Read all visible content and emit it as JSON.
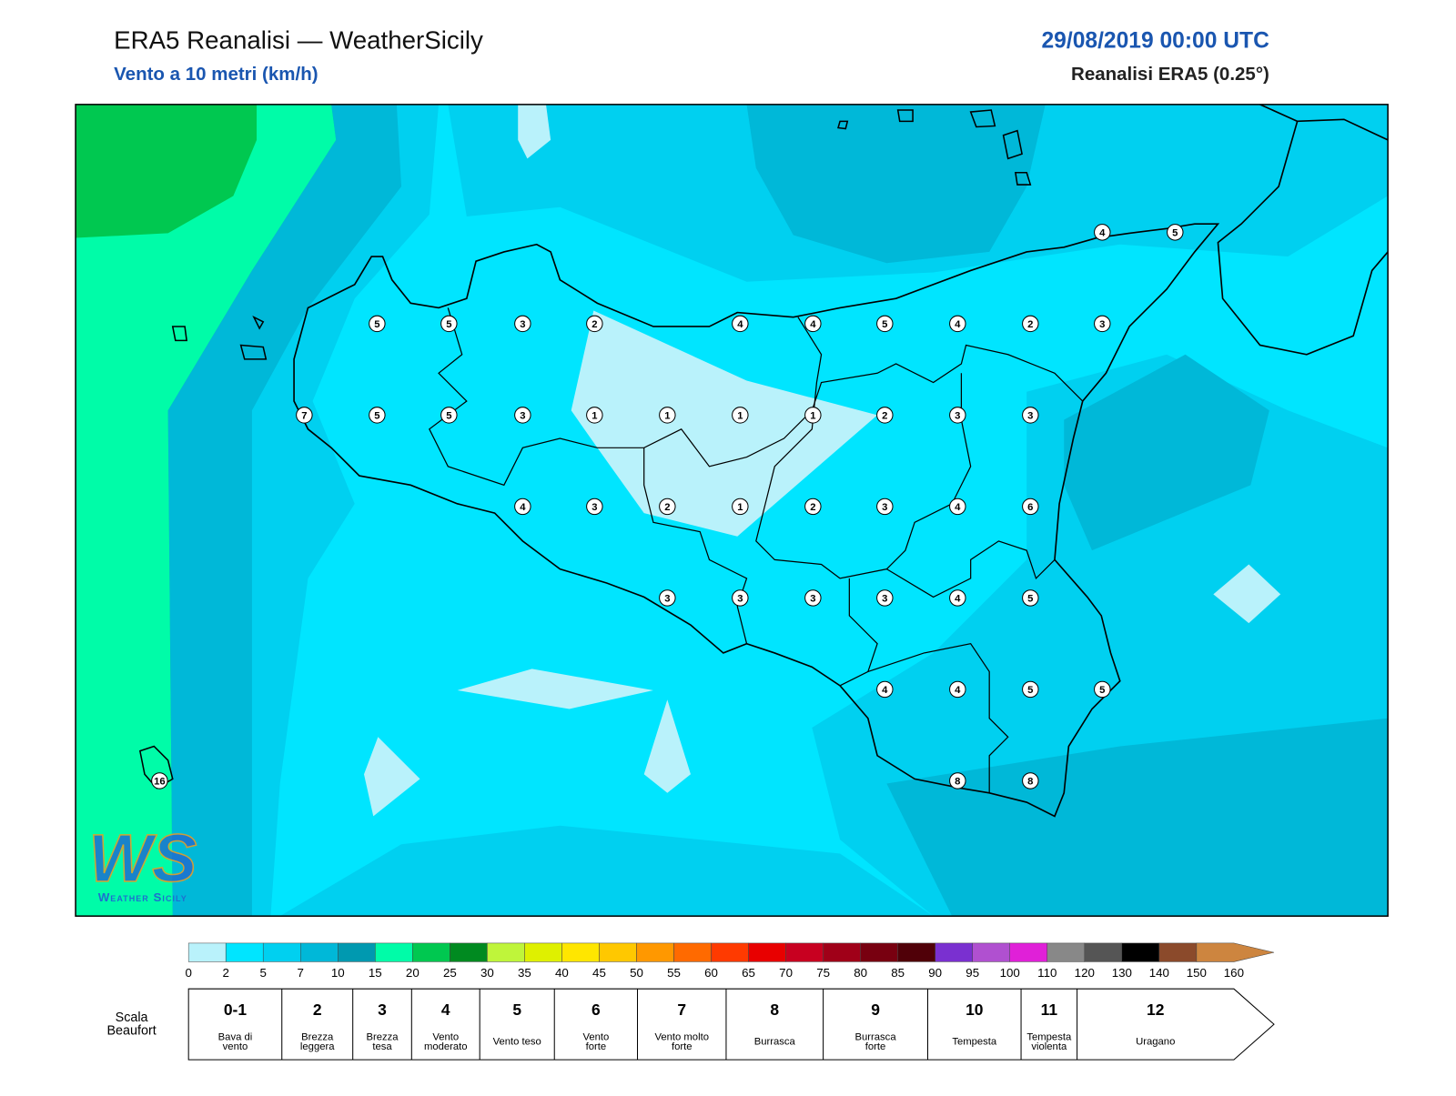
{
  "header": {
    "title": "ERA5 Reanalisi — WeatherSicily",
    "subtitle": "Vento a 10 metri (km/h)",
    "date": "29/08/2019 00:00 UTC",
    "source": "Reanalisi ERA5 (0.25°)"
  },
  "stations": [
    5,
    5,
    3,
    2,
    4,
    4,
    5,
    4,
    2,
    3,
    7,
    5,
    5,
    3,
    1,
    1,
    1,
    1,
    2,
    3,
    3,
    4,
    3,
    2,
    1,
    2,
    3,
    4,
    6,
    3,
    3,
    3,
    3,
    4,
    5,
    4,
    4,
    5,
    5,
    8,
    8,
    4,
    5,
    16
  ],
  "logo": {
    "mark": "WS",
    "text": "Weather Sicily"
  },
  "colorbar": {
    "levels": [
      0,
      2,
      5,
      7,
      10,
      15,
      20,
      25,
      30,
      35,
      40,
      45,
      50,
      55,
      60,
      65,
      70,
      75,
      80,
      85,
      90,
      95,
      100,
      110,
      120,
      130,
      140,
      150,
      160
    ],
    "colors": [
      "#b9f2fb",
      "#00e5ff",
      "#00d0f0",
      "#00b8d8",
      "#0099b0",
      "#00fca8",
      "#00c850",
      "#008a20",
      "#bff53a",
      "#dff000",
      "#ffe600",
      "#ffc800",
      "#ff9800",
      "#ff6a00",
      "#ff3a00",
      "#e80000",
      "#c80020",
      "#a00018",
      "#780010",
      "#500008",
      "#7a30d0",
      "#b050d0",
      "#e020d8",
      "#888888",
      "#555555",
      "#000000",
      "#8b4a2b",
      "#cd853f"
    ]
  },
  "beaufort": {
    "title": [
      "Scala",
      "Beaufort"
    ],
    "classes": [
      {
        "force": "0-1",
        "label": [
          "Bava di",
          "vento"
        ]
      },
      {
        "force": 2,
        "label": [
          "Brezza",
          "leggera"
        ]
      },
      {
        "force": 3,
        "label": [
          "Brezza",
          "tesa"
        ]
      },
      {
        "force": 4,
        "label": [
          "Vento",
          "moderato"
        ]
      },
      {
        "force": 5,
        "label": [
          "Vento teso"
        ]
      },
      {
        "force": 6,
        "label": [
          "Vento",
          "forte"
        ]
      },
      {
        "force": 7,
        "label": [
          "Vento molto",
          "forte"
        ]
      },
      {
        "force": 8,
        "label": [
          "Burrasca"
        ]
      },
      {
        "force": 9,
        "label": [
          "Burrasca",
          "forte"
        ]
      },
      {
        "force": 10,
        "label": [
          "Tempesta"
        ]
      },
      {
        "force": 11,
        "label": [
          "Tempesta",
          "violenta"
        ]
      },
      {
        "force": 12,
        "label": [
          "Uragano"
        ]
      }
    ]
  }
}
